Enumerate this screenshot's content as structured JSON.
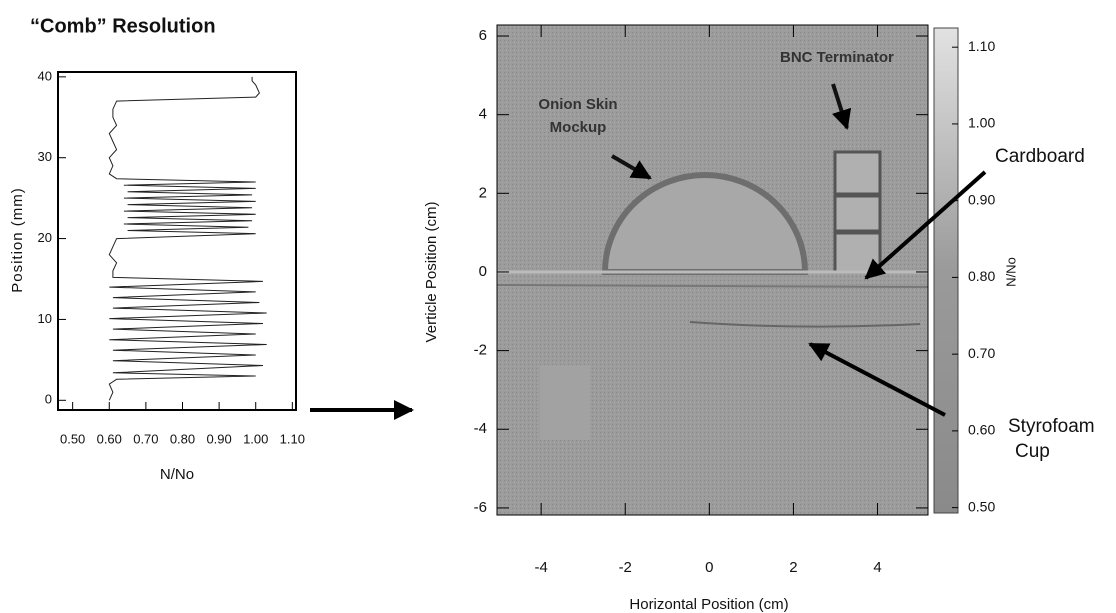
{
  "chart_data": [
    {
      "type": "line",
      "title": "“Comb” Resolution",
      "xlabel": "N/No",
      "ylabel": "Position (mm)",
      "xlim": [
        0.46,
        1.11
      ],
      "xticks": [
        {
          "value": 0.5,
          "label": "0.50"
        },
        {
          "value": 0.6,
          "label": "0.60"
        },
        {
          "value": 0.7,
          "label": "0.70"
        },
        {
          "value": 0.8,
          "label": "0.80"
        },
        {
          "value": 0.9,
          "label": "0.90"
        },
        {
          "value": 1.0,
          "label": "1.00"
        },
        {
          "value": 1.1,
          "label": "1.10"
        }
      ],
      "ylim": [
        -1.2,
        40.6
      ],
      "yticks": [
        0,
        10,
        20,
        30,
        40
      ],
      "color": "#222",
      "y": [
        0,
        1,
        2,
        2.6,
        3,
        3.4,
        4.3,
        4.9,
        5.6,
        6.2,
        6.9,
        7.5,
        8.2,
        8.8,
        9.5,
        10.1,
        10.8,
        11.4,
        12.1,
        12.7,
        13.4,
        14.0,
        14.7,
        15.2,
        16,
        17,
        18,
        19,
        20,
        20.6,
        21.0,
        21.4,
        21.8,
        22.2,
        22.6,
        23.0,
        23.4,
        23.8,
        24.2,
        24.6,
        25.0,
        25.4,
        25.8,
        26.2,
        26.6,
        27.0,
        27.4,
        28,
        29,
        30,
        31,
        32,
        33,
        34,
        35,
        36,
        37,
        37.5,
        38,
        39,
        39.5,
        40
      ],
      "values": [
        0.6,
        0.61,
        0.6,
        0.62,
        1.0,
        0.61,
        1.02,
        0.61,
        1.0,
        0.61,
        1.03,
        0.6,
        1.0,
        0.61,
        1.02,
        0.6,
        1.03,
        0.61,
        1.01,
        0.61,
        1.0,
        0.6,
        1.02,
        0.61,
        0.61,
        0.62,
        0.6,
        0.61,
        0.62,
        1.0,
        0.65,
        0.98,
        0.64,
        0.99,
        0.65,
        1.0,
        0.64,
        0.99,
        0.65,
        1.0,
        0.64,
        0.99,
        0.65,
        1.0,
        0.64,
        1.0,
        0.62,
        0.6,
        0.61,
        0.6,
        0.62,
        0.61,
        0.6,
        0.62,
        0.61,
        0.61,
        0.62,
        1.0,
        1.01,
        1.0,
        0.99,
        0.99
      ]
    },
    {
      "type": "image",
      "xlabel": "Horizontal Position (cm)",
      "ylabel": "Verticle Position (cm)",
      "xlim": [
        -5.05,
        5.2
      ],
      "xticks": [
        -4,
        -2,
        0,
        2,
        4
      ],
      "ylim": [
        -6.18,
        6.28
      ],
      "yticks": [
        -6,
        -4,
        -2,
        0,
        2,
        4,
        6
      ],
      "colorbar": {
        "label": "N/No",
        "lim": [
          0.493,
          1.125
        ],
        "ticks": [
          {
            "value": 0.5,
            "label": "0.50"
          },
          {
            "value": 0.6,
            "label": "0.60"
          },
          {
            "value": 0.7,
            "label": "0.70"
          },
          {
            "value": 0.8,
            "label": "0.80"
          },
          {
            "value": 0.9,
            "label": "0.90"
          },
          {
            "value": 1.0,
            "label": "1.00"
          },
          {
            "value": 1.1,
            "label": "1.10"
          }
        ]
      },
      "annotations": [
        "BNC Terminator",
        "Onion Skin",
        "Mockup",
        "Cardboard",
        "Styrofoam",
        "Cup"
      ]
    }
  ]
}
